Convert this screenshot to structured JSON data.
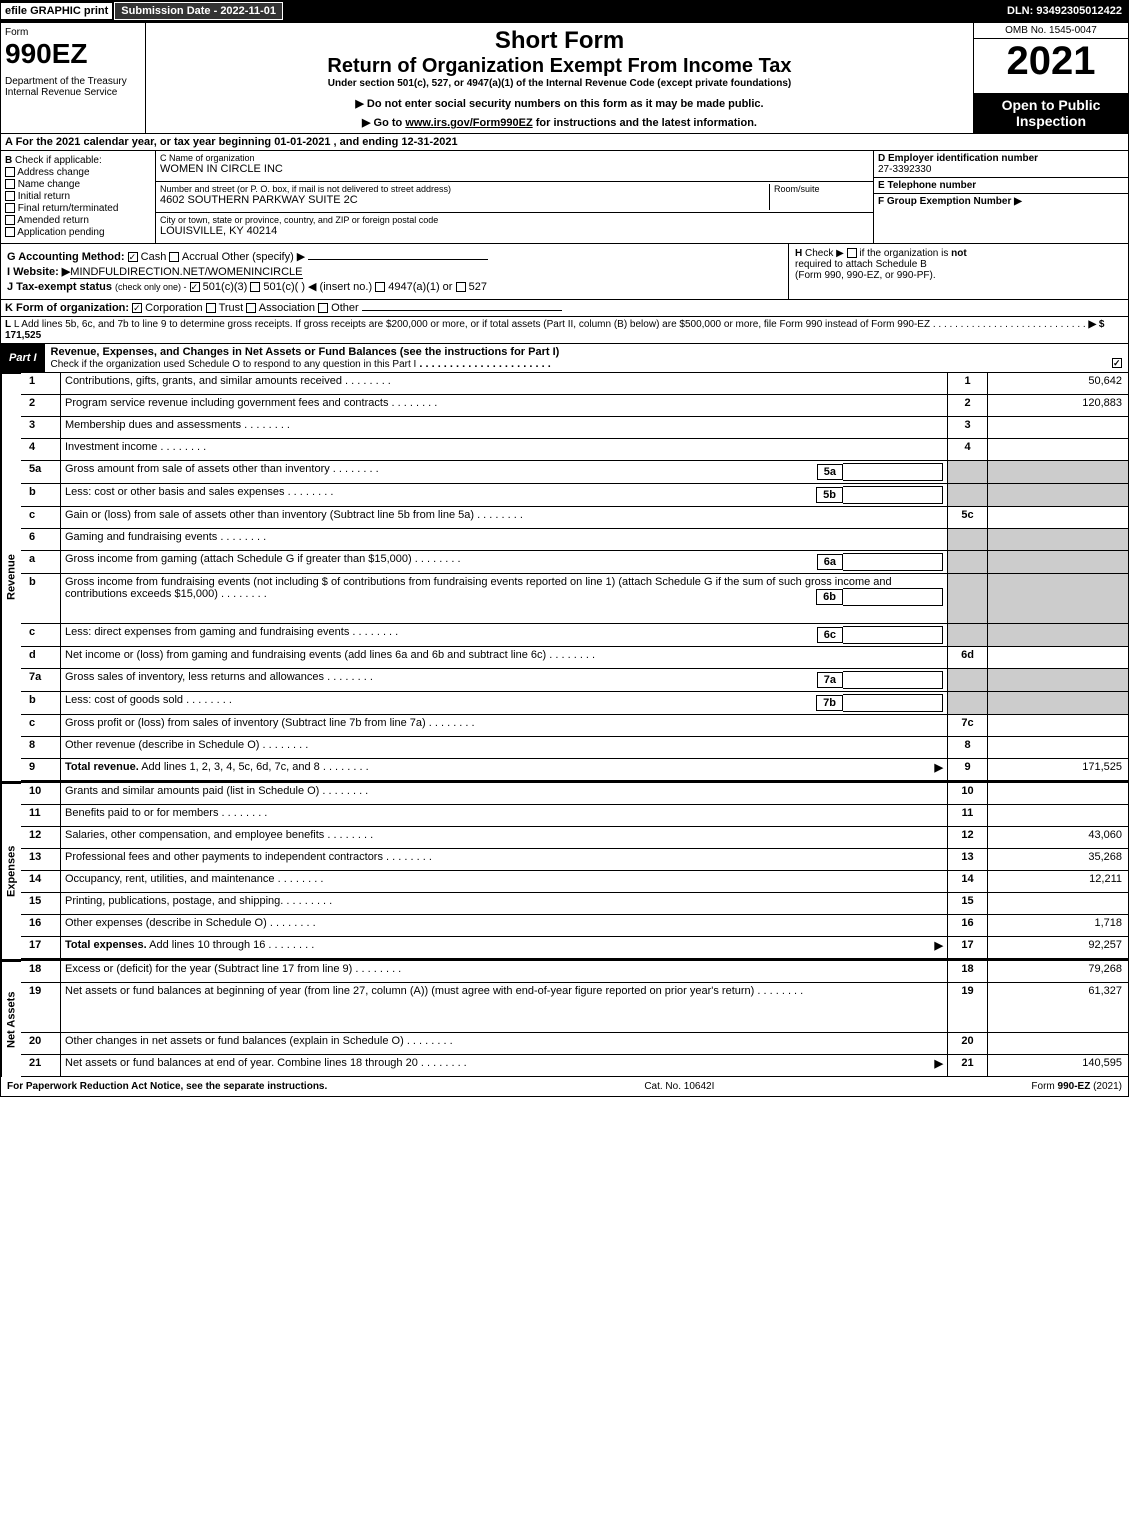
{
  "top": {
    "efile": "efile GRAPHIC print",
    "sub_date": "Submission Date - 2022-11-01",
    "dln": "DLN: 93492305012422"
  },
  "header": {
    "form_word": "Form",
    "form_num": "990EZ",
    "dept": "Department of the Treasury\nInternal Revenue Service",
    "short": "Short Form",
    "ret": "Return of Organization Exempt From Income Tax",
    "under": "Under section 501(c), 527, or 4947(a)(1) of the Internal Revenue Code (except private foundations)",
    "warn": "▶ Do not enter social security numbers on this form as it may be made public.",
    "goto_pre": "▶ Go to ",
    "goto_link": "www.irs.gov/Form990EZ",
    "goto_post": " for instructions and the latest information.",
    "omb": "OMB No. 1545-0047",
    "year": "2021",
    "open": "Open to Public Inspection"
  },
  "row_a": "A  For the 2021 calendar year, or tax year beginning 01-01-2021 , and ending 12-31-2021",
  "b": {
    "title": "B",
    "check_label": "Check if applicable:",
    "addr_change": "Address change",
    "name_change": "Name change",
    "initial": "Initial return",
    "final": "Final return/terminated",
    "amended": "Amended return",
    "pending": "Application pending"
  },
  "c": {
    "name_label": "C Name of organization",
    "name_val": "WOMEN IN CIRCLE INC",
    "street_label": "Number and street (or P. O. box, if mail is not delivered to street address)",
    "room_label": "Room/suite",
    "street_val": "4602 SOUTHERN PARKWAY SUITE 2C",
    "city_label": "City or town, state or province, country, and ZIP or foreign postal code",
    "city_val": "LOUISVILLE, KY  40214"
  },
  "def": {
    "d_label": "D Employer identification number",
    "d_val": "27-3392330",
    "e_label": "E Telephone number",
    "e_val": "",
    "f_label": "F Group Exemption Number  ▶",
    "f_val": ""
  },
  "g": {
    "acct_label": "G Accounting Method:",
    "cash": "Cash",
    "accrual": "Accrual",
    "other": "Other (specify) ▶",
    "website_label": "I Website: ▶",
    "website_val": "MINDFULDIRECTION.NET/WOMENINCIRCLE",
    "tax_label": "J Tax-exempt status",
    "tax_note": "(check only one) -",
    "tax_501c3": "501(c)(3)",
    "tax_501c": "501(c)(  ) ◀ (insert no.)",
    "tax_4947": "4947(a)(1) or",
    "tax_527": "527"
  },
  "h": {
    "label": "H",
    "text1": "Check ▶",
    "text2": "if the organization is",
    "not": "not",
    "text3": "required to attach Schedule B",
    "text4": "(Form 990, 990-EZ, or 990-PF)."
  },
  "k": {
    "label": "K Form of organization:",
    "corp": "Corporation",
    "trust": "Trust",
    "assoc": "Association",
    "other": "Other"
  },
  "l": {
    "text1": "L Add lines 5b, 6c, and 7b to line 9 to determine gross receipts. If gross receipts are $200,000 or more, or if total assets (Part II, column (B) below) are $500,000 or more, file Form 990 instead of Form 990-EZ",
    "amount": "▶ $ 171,525"
  },
  "part1": {
    "tab": "Part I",
    "title": "Revenue, Expenses, and Changes in Net Assets or Fund Balances (see the instructions for Part I)",
    "check": "Check if the organization used Schedule O to respond to any question in this Part I"
  },
  "sections": {
    "revenue": "Revenue",
    "expenses": "Expenses",
    "netassets": "Net Assets"
  },
  "lines": [
    {
      "n": "1",
      "d": "Contributions, gifts, grants, and similar amounts received",
      "c": "1",
      "a": "50,642"
    },
    {
      "n": "2",
      "d": "Program service revenue including government fees and contracts",
      "c": "2",
      "a": "120,883"
    },
    {
      "n": "3",
      "d": "Membership dues and assessments",
      "c": "3",
      "a": ""
    },
    {
      "n": "4",
      "d": "Investment income",
      "c": "4",
      "a": ""
    },
    {
      "n": "5a",
      "d": "Gross amount from sale of assets other than inventory",
      "sub": "5a",
      "shaded": true
    },
    {
      "n": "b",
      "d": "Less: cost or other basis and sales expenses",
      "sub": "5b",
      "shaded": true
    },
    {
      "n": "c",
      "d": "Gain or (loss) from sale of assets other than inventory (Subtract line 5b from line 5a)",
      "c": "5c",
      "a": ""
    },
    {
      "n": "6",
      "d": "Gaming and fundraising events",
      "noright": true
    },
    {
      "n": "a",
      "d": "Gross income from gaming (attach Schedule G if greater than $15,000)",
      "sub": "6a",
      "shaded": true
    },
    {
      "n": "b",
      "d": "Gross income from fundraising events (not including $                    of contributions from fundraising events reported on line 1) (attach Schedule G if the sum of such gross income and contributions exceeds $15,000)",
      "sub": "6b",
      "shaded": true,
      "tall": true
    },
    {
      "n": "c",
      "d": "Less: direct expenses from gaming and fundraising events",
      "sub": "6c",
      "shaded": true
    },
    {
      "n": "d",
      "d": "Net income or (loss) from gaming and fundraising events (add lines 6a and 6b and subtract line 6c)",
      "c": "6d",
      "a": ""
    },
    {
      "n": "7a",
      "d": "Gross sales of inventory, less returns and allowances",
      "sub": "7a",
      "shaded": true
    },
    {
      "n": "b",
      "d": "Less: cost of goods sold",
      "sub": "7b",
      "shaded": true
    },
    {
      "n": "c",
      "d": "Gross profit or (loss) from sales of inventory (Subtract line 7b from line 7a)",
      "c": "7c",
      "a": ""
    },
    {
      "n": "8",
      "d": "Other revenue (describe in Schedule O)",
      "c": "8",
      "a": ""
    },
    {
      "n": "9",
      "d": "Total revenue. Add lines 1, 2, 3, 4, 5c, 6d, 7c, and 8",
      "c": "9",
      "a": "171,525",
      "bold": true,
      "arrow": true
    }
  ],
  "expense_lines": [
    {
      "n": "10",
      "d": "Grants and similar amounts paid (list in Schedule O)",
      "c": "10",
      "a": ""
    },
    {
      "n": "11",
      "d": "Benefits paid to or for members",
      "c": "11",
      "a": ""
    },
    {
      "n": "12",
      "d": "Salaries, other compensation, and employee benefits",
      "c": "12",
      "a": "43,060"
    },
    {
      "n": "13",
      "d": "Professional fees and other payments to independent contractors",
      "c": "13",
      "a": "35,268"
    },
    {
      "n": "14",
      "d": "Occupancy, rent, utilities, and maintenance",
      "c": "14",
      "a": "12,211"
    },
    {
      "n": "15",
      "d": "Printing, publications, postage, and shipping.",
      "c": "15",
      "a": ""
    },
    {
      "n": "16",
      "d": "Other expenses (describe in Schedule O)",
      "c": "16",
      "a": "1,718"
    },
    {
      "n": "17",
      "d": "Total expenses. Add lines 10 through 16",
      "c": "17",
      "a": "92,257",
      "bold": true,
      "arrow": true
    }
  ],
  "net_lines": [
    {
      "n": "18",
      "d": "Excess or (deficit) for the year (Subtract line 17 from line 9)",
      "c": "18",
      "a": "79,268"
    },
    {
      "n": "19",
      "d": "Net assets or fund balances at beginning of year (from line 27, column (A)) (must agree with end-of-year figure reported on prior year's return)",
      "c": "19",
      "a": "61,327",
      "tall": true
    },
    {
      "n": "20",
      "d": "Other changes in net assets or fund balances (explain in Schedule O)",
      "c": "20",
      "a": ""
    },
    {
      "n": "21",
      "d": "Net assets or fund balances at end of year. Combine lines 18 through 20",
      "c": "21",
      "a": "140,595",
      "arrow": true
    }
  ],
  "footer": {
    "left": "For Paperwork Reduction Act Notice, see the separate instructions.",
    "cat": "Cat. No. 10642I",
    "right_pre": "Form ",
    "right_form": "990-EZ",
    "right_post": " (2021)"
  }
}
